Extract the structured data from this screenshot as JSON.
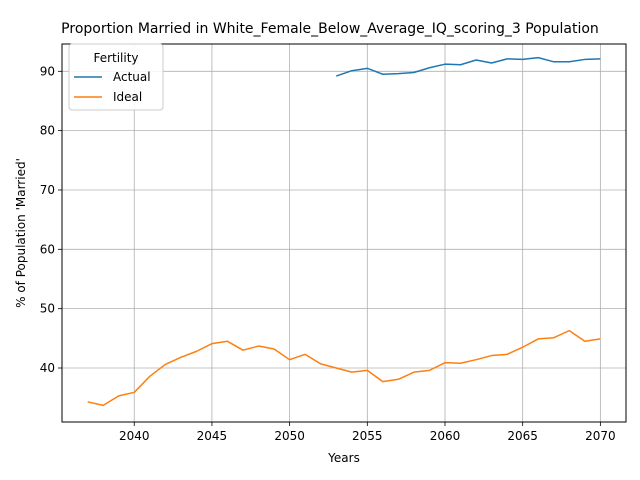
{
  "chart_data": {
    "type": "line",
    "title": "Proportion Married in White_Female_Below_Average_IQ_scoring_3 Population",
    "xlabel": "Years",
    "ylabel": "% of Population 'Married'",
    "xlim": [
      2035.35,
      2071.65
    ],
    "ylim": [
      30.9,
      94.6
    ],
    "xticks": [
      2040,
      2045,
      2050,
      2055,
      2060,
      2065,
      2070
    ],
    "yticks": [
      40,
      50,
      60,
      70,
      80,
      90
    ],
    "grid": true,
    "legend": {
      "title": "Fertility",
      "placement": "upper left"
    },
    "series": [
      {
        "name": "Actual",
        "color": "#1f77b4",
        "x": [
          2053,
          2054,
          2055,
          2056,
          2057,
          2058,
          2059,
          2060,
          2061,
          2062,
          2063,
          2064,
          2065,
          2066,
          2067,
          2068,
          2069,
          2070
        ],
        "y": [
          89.2,
          90.1,
          90.5,
          89.5,
          89.6,
          89.8,
          90.6,
          91.2,
          91.1,
          91.9,
          91.4,
          92.1,
          92.0,
          92.3,
          91.6,
          91.6,
          92.0,
          92.1
        ]
      },
      {
        "name": "Ideal",
        "color": "#ff7f0e",
        "x": [
          2037,
          2038,
          2039,
          2040,
          2041,
          2042,
          2043,
          2044,
          2045,
          2046,
          2047,
          2048,
          2049,
          2050,
          2051,
          2052,
          2053,
          2054,
          2055,
          2056,
          2057,
          2058,
          2059,
          2060,
          2061,
          2062,
          2063,
          2064,
          2065,
          2066,
          2067,
          2068,
          2069,
          2070
        ],
        "y": [
          34.3,
          33.7,
          35.3,
          35.9,
          38.6,
          40.6,
          41.8,
          42.8,
          44.1,
          44.5,
          43.0,
          43.7,
          43.2,
          41.4,
          42.3,
          40.7,
          40.0,
          39.3,
          39.6,
          37.7,
          38.1,
          39.3,
          39.6,
          40.9,
          40.8,
          41.4,
          42.1,
          42.3,
          43.5,
          44.9,
          45.1,
          46.3,
          44.5,
          44.9
        ]
      }
    ]
  }
}
